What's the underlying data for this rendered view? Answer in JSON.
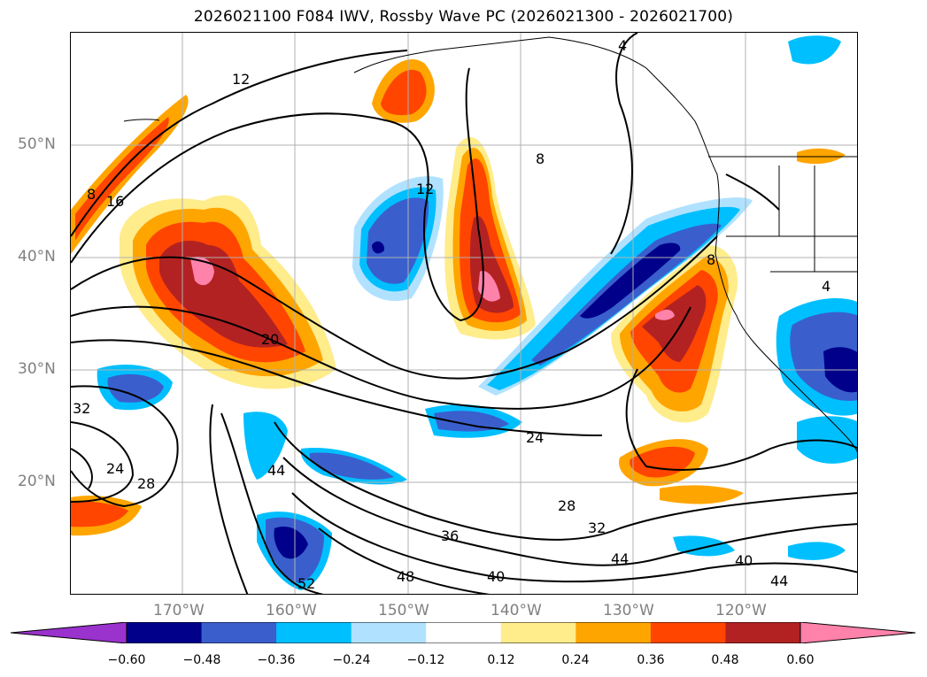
{
  "title": "2026021100 F084 IWV, Rossby Wave PC (2026021300 - 2026021700)",
  "lat_labels": [
    "50°N",
    "40°N",
    "30°N",
    "20°N"
  ],
  "lon_labels": [
    "170°W",
    "160°W",
    "150°W",
    "140°W",
    "130°W",
    "120°W"
  ],
  "contour_labels": [
    "12",
    "8",
    "16",
    "20",
    "24",
    "28",
    "32",
    "36",
    "40",
    "44",
    "48",
    "52",
    "4"
  ],
  "colorbar": {
    "ticks": [
      "−0.60",
      "−0.48",
      "−0.36",
      "−0.24",
      "−0.12",
      "0.12",
      "0.24",
      "0.36",
      "0.48",
      "0.60"
    ],
    "colors": [
      "#9a32cd",
      "#00008b",
      "#3a5fcd",
      "#00bfff",
      "#b0e2ff",
      "#ffffff",
      "#ffec8b",
      "#ffa500",
      "#ff4500",
      "#b22222",
      "#ff82ab"
    ],
    "extend": "both"
  },
  "map": {
    "projection": "lat-lon",
    "lon_range": [
      "180°W",
      "110°W"
    ],
    "lat_range": [
      "10°N",
      "60°N"
    ],
    "grid": true,
    "shading": "Rossby Wave PC",
    "contours": "IWV"
  }
}
